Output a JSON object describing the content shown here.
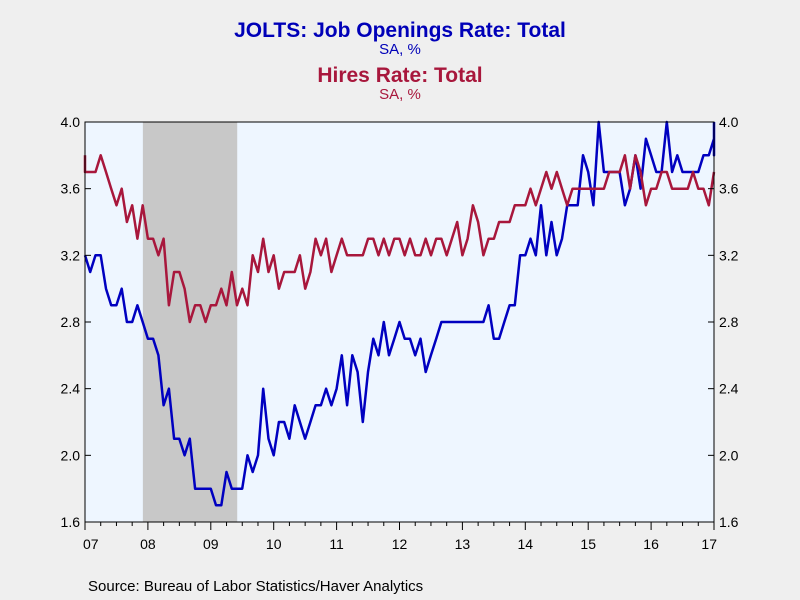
{
  "chart_data": {
    "type": "line",
    "titles": [
      {
        "text": "JOLTS: Job Openings Rate: Total",
        "subtitle": "SA, %"
      },
      {
        "text": "Hires Rate: Total",
        "subtitle": "SA, %"
      }
    ],
    "x_tick_labels": [
      "07",
      "08",
      "09",
      "10",
      "11",
      "12",
      "13",
      "14",
      "15",
      "16",
      "17"
    ],
    "x_range": [
      2007.0,
      2017.0
    ],
    "y_ticks": [
      "1.6",
      "2.0",
      "2.4",
      "2.8",
      "3.2",
      "3.6",
      "4.0"
    ],
    "ylim": [
      1.6,
      4.0
    ],
    "recession_shading": {
      "start": 2007.92,
      "end": 2009.42,
      "color": "#c8c8c8"
    },
    "plot_background": "#eef6ff",
    "series": [
      {
        "color": "#0000c0",
        "start": 2007.0,
        "step": 0.0833333,
        "values": [
          3.2,
          3.1,
          3.2,
          3.2,
          3.0,
          2.9,
          2.9,
          3.0,
          2.8,
          2.8,
          2.9,
          2.8,
          2.7,
          2.7,
          2.6,
          2.3,
          2.4,
          2.1,
          2.1,
          2.0,
          2.1,
          1.8,
          1.8,
          1.8,
          1.8,
          1.7,
          1.7,
          1.9,
          1.8,
          1.8,
          1.8,
          2.0,
          1.9,
          2.0,
          2.4,
          2.1,
          2.0,
          2.2,
          2.2,
          2.1,
          2.3,
          2.2,
          2.1,
          2.2,
          2.3,
          2.3,
          2.4,
          2.3,
          2.4,
          2.6,
          2.3,
          2.6,
          2.5,
          2.2,
          2.5,
          2.7,
          2.6,
          2.8,
          2.6,
          2.7,
          2.8,
          2.7,
          2.7,
          2.6,
          2.7,
          2.5,
          2.6,
          2.7,
          2.8,
          2.8,
          2.8,
          2.8,
          2.8,
          2.8,
          2.8,
          2.8,
          2.8,
          2.9,
          2.7,
          2.7,
          2.8,
          2.9,
          2.9,
          3.2,
          3.2,
          3.3,
          3.2,
          3.5,
          3.2,
          3.4,
          3.2,
          3.3,
          3.5,
          3.5,
          3.5,
          3.8,
          3.7,
          3.5,
          4.0,
          3.7,
          3.7,
          3.7,
          3.7,
          3.5,
          3.6,
          3.8,
          3.6,
          3.9,
          3.8,
          3.7,
          3.7,
          4.0,
          3.7,
          3.8,
          3.7,
          3.7,
          3.7,
          3.7,
          3.8,
          3.8,
          3.9,
          3.8,
          4.0
        ]
      },
      {
        "color": "#a8173c",
        "start": 2006.9167,
        "step": 0.0833333,
        "values": [
          3.8,
          3.7,
          3.7,
          3.7,
          3.8,
          3.7,
          3.6,
          3.5,
          3.6,
          3.4,
          3.5,
          3.3,
          3.5,
          3.3,
          3.3,
          3.2,
          3.3,
          2.9,
          3.1,
          3.1,
          3.0,
          2.8,
          2.9,
          2.9,
          2.8,
          2.9,
          2.9,
          3.0,
          2.9,
          3.1,
          2.9,
          3.0,
          2.9,
          3.2,
          3.1,
          3.3,
          3.1,
          3.2,
          3.0,
          3.1,
          3.1,
          3.1,
          3.2,
          3.0,
          3.1,
          3.3,
          3.2,
          3.3,
          3.1,
          3.2,
          3.3,
          3.2,
          3.2,
          3.2,
          3.2,
          3.3,
          3.3,
          3.2,
          3.3,
          3.2,
          3.3,
          3.3,
          3.2,
          3.3,
          3.2,
          3.2,
          3.3,
          3.2,
          3.3,
          3.3,
          3.2,
          3.3,
          3.4,
          3.2,
          3.3,
          3.5,
          3.4,
          3.2,
          3.3,
          3.3,
          3.4,
          3.4,
          3.4,
          3.5,
          3.5,
          3.5,
          3.6,
          3.5,
          3.6,
          3.7,
          3.6,
          3.7,
          3.6,
          3.5,
          3.6,
          3.6,
          3.6,
          3.6,
          3.6,
          3.6,
          3.6,
          3.7,
          3.7,
          3.7,
          3.8,
          3.6,
          3.8,
          3.7,
          3.5,
          3.6,
          3.6,
          3.7,
          3.7,
          3.6,
          3.6,
          3.6,
          3.6,
          3.7,
          3.6,
          3.6,
          3.5,
          3.7,
          3.7
        ]
      }
    ]
  },
  "source": "Source:  Bureau of Labor Statistics/Haver Analytics"
}
